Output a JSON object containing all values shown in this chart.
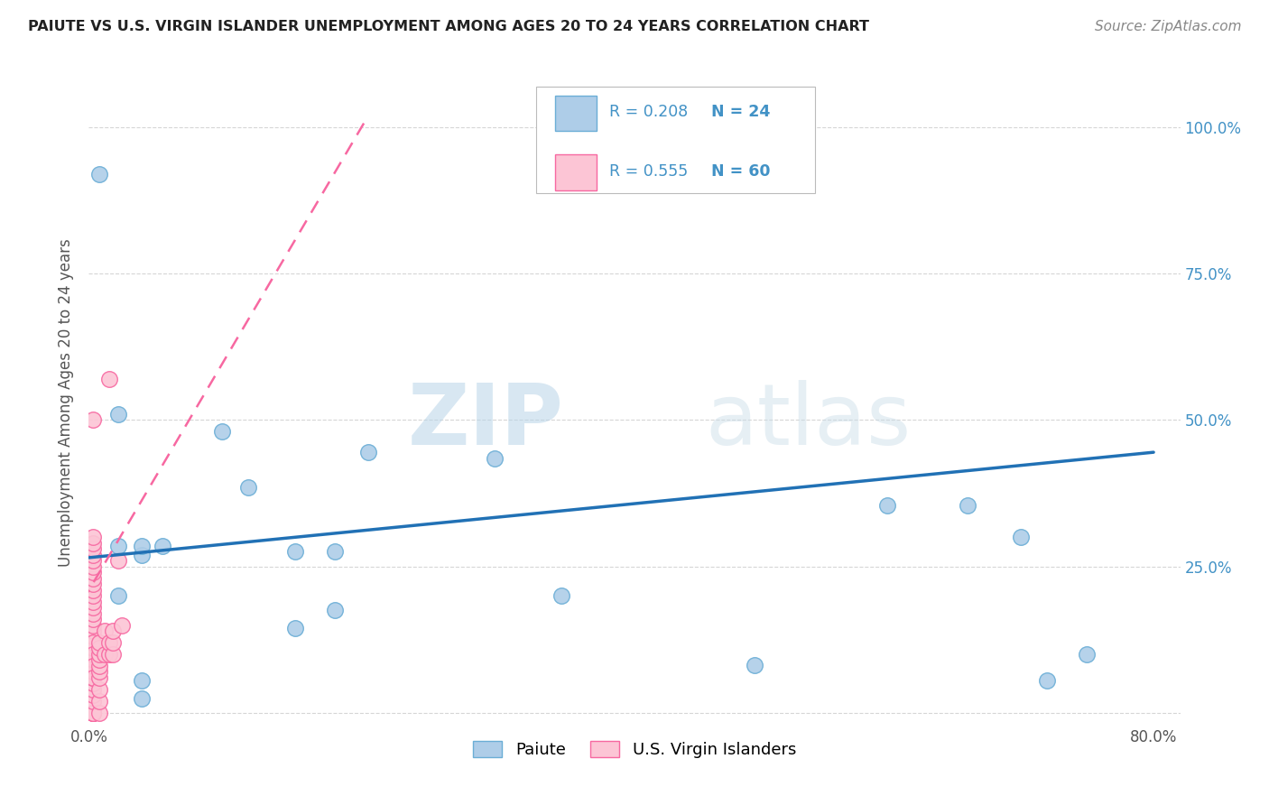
{
  "title": "PAIUTE VS U.S. VIRGIN ISLANDER UNEMPLOYMENT AMONG AGES 20 TO 24 YEARS CORRELATION CHART",
  "source": "Source: ZipAtlas.com",
  "ylabel": "Unemployment Among Ages 20 to 24 years",
  "xlim": [
    0.0,
    0.82
  ],
  "ylim": [
    -0.02,
    1.08
  ],
  "xticks": [
    0.0,
    0.1,
    0.2,
    0.3,
    0.4,
    0.5,
    0.6,
    0.7,
    0.8
  ],
  "xticklabels": [
    "0.0%",
    "",
    "",
    "",
    "",
    "",
    "",
    "",
    "80.0%"
  ],
  "yticks": [
    0.0,
    0.25,
    0.5,
    0.75,
    1.0
  ],
  "left_yticklabels": [
    "",
    "",
    "",
    "",
    ""
  ],
  "right_yticklabels": [
    "",
    "25.0%",
    "50.0%",
    "75.0%",
    "100.0%"
  ],
  "paiute_color": "#aecde8",
  "paiute_edge_color": "#6baed6",
  "virgin_color": "#fcc5d5",
  "virgin_edge_color": "#f768a1",
  "paiute_R": 0.208,
  "paiute_N": 24,
  "virgin_R": 0.555,
  "virgin_N": 60,
  "paiute_scatter_x": [
    0.008,
    0.022,
    0.022,
    0.04,
    0.04,
    0.04,
    0.04,
    0.1,
    0.12,
    0.155,
    0.155,
    0.185,
    0.185,
    0.21,
    0.305,
    0.355,
    0.6,
    0.66,
    0.7,
    0.72,
    0.75,
    0.022,
    0.055,
    0.5
  ],
  "paiute_scatter_y": [
    0.92,
    0.285,
    0.2,
    0.27,
    0.285,
    0.055,
    0.025,
    0.48,
    0.385,
    0.275,
    0.145,
    0.275,
    0.175,
    0.445,
    0.435,
    0.2,
    0.355,
    0.355,
    0.3,
    0.055,
    0.1,
    0.51,
    0.285,
    0.082
  ],
  "virgin_scatter_x": [
    0.003,
    0.003,
    0.003,
    0.003,
    0.003,
    0.003,
    0.003,
    0.003,
    0.003,
    0.003,
    0.003,
    0.003,
    0.003,
    0.003,
    0.003,
    0.003,
    0.003,
    0.003,
    0.003,
    0.003,
    0.003,
    0.003,
    0.003,
    0.003,
    0.003,
    0.003,
    0.003,
    0.003,
    0.003,
    0.003,
    0.003,
    0.003,
    0.003,
    0.003,
    0.003,
    0.003,
    0.003,
    0.003,
    0.003,
    0.003,
    0.008,
    0.008,
    0.008,
    0.008,
    0.008,
    0.008,
    0.008,
    0.008,
    0.008,
    0.008,
    0.012,
    0.012,
    0.015,
    0.015,
    0.015,
    0.018,
    0.018,
    0.018,
    0.022,
    0.025
  ],
  "virgin_scatter_y": [
    0.0,
    0.0,
    0.0,
    0.0,
    0.0,
    0.0,
    0.02,
    0.03,
    0.04,
    0.05,
    0.06,
    0.07,
    0.08,
    0.09,
    0.1,
    0.11,
    0.12,
    0.13,
    0.14,
    0.15,
    0.16,
    0.17,
    0.18,
    0.19,
    0.2,
    0.21,
    0.22,
    0.23,
    0.24,
    0.25,
    0.26,
    0.27,
    0.28,
    0.29,
    0.3,
    0.5,
    0.12,
    0.1,
    0.08,
    0.06,
    0.0,
    0.02,
    0.04,
    0.06,
    0.07,
    0.08,
    0.09,
    0.1,
    0.11,
    0.12,
    0.1,
    0.14,
    0.1,
    0.12,
    0.57,
    0.1,
    0.12,
    0.14,
    0.26,
    0.15
  ],
  "paiute_trend_x": [
    0.0,
    0.8
  ],
  "paiute_trend_y": [
    0.265,
    0.445
  ],
  "virgin_trend_x": [
    -0.005,
    0.21
  ],
  "virgin_trend_y": [
    0.19,
    1.02
  ],
  "paiute_trend_color": "#2171b5",
  "virgin_trend_color": "#f768a1",
  "watermark_zip": "ZIP",
  "watermark_atlas": "atlas",
  "watermark_color": "#d0e4f0",
  "legend_paiute_label": "Paiute",
  "legend_virgin_label": "U.S. Virgin Islanders",
  "background_color": "#ffffff",
  "grid_color": "#cccccc",
  "right_tick_color": "#4292c6",
  "legend_r_color": "#4292c6",
  "legend_n_color": "#4292c6"
}
